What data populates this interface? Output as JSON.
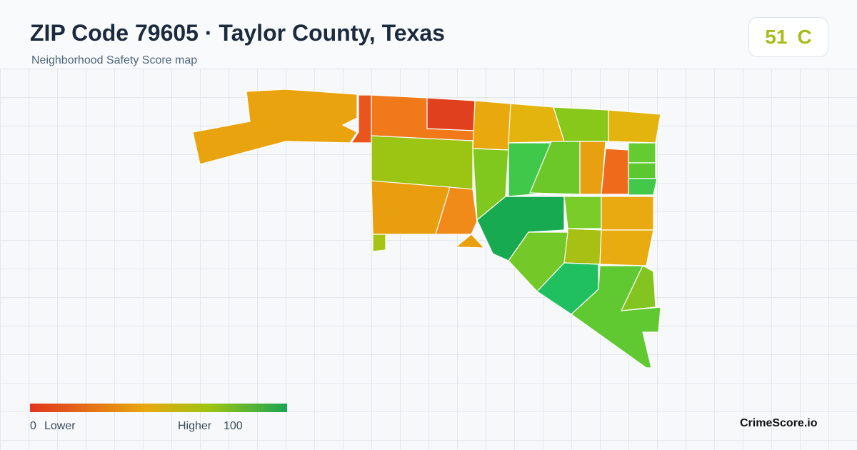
{
  "header": {
    "title": "ZIP Code 79605 · Taylor County, Texas",
    "subtitle": "Neighborhood Safety Score map"
  },
  "badge": {
    "score": 51,
    "grade": "C"
  },
  "legend": {
    "min": 0,
    "min_label": "Lower",
    "max_label": "Higher",
    "max": 100
  },
  "brand": "CrimeScore.io"
}
